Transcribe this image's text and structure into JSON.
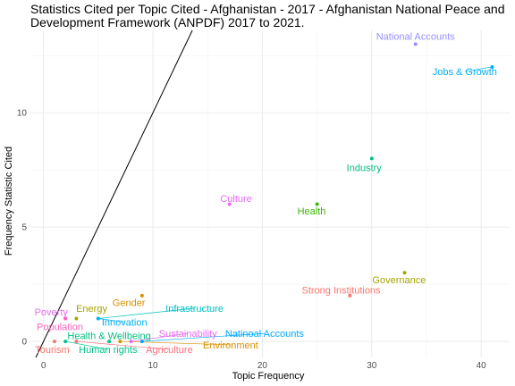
{
  "chart_data": {
    "type": "scatter",
    "title": "Statistics Cited per Topic Cited - Afghanistan - 2017 - Afghanistan National Peace and Development Framework (ANPDF) 2017 to 2021.",
    "title_lines": [
      "Statistics Cited per Topic Cited - Afghanistan - 2017 - Afghanistan National Peace and",
      "Development Framework (ANPDF) 2017 to 2021."
    ],
    "xlabel": "Topic Frequency",
    "ylabel": "Frequency Statistic Cited",
    "xlim": [
      -1.2,
      42.6
    ],
    "ylim": [
      -0.7,
      13.6
    ],
    "x_ticks": [
      0,
      10,
      20,
      30,
      40
    ],
    "y_ticks": [
      0,
      5,
      10
    ],
    "grid": true,
    "reference_line": {
      "type": "y = x",
      "color": "#000000"
    },
    "points": [
      {
        "label": "National Accounts",
        "x": 34,
        "y": 13,
        "color": "#9590ff",
        "lx": 34,
        "ly": 13.35
      },
      {
        "label": "Jobs & Growth",
        "x": 41,
        "y": 12,
        "color": "#00b0f6",
        "lx": 38.5,
        "ly": 11.8
      },
      {
        "label": "Industry",
        "x": 30,
        "y": 8,
        "color": "#00bf7d",
        "lx": 29.3,
        "ly": 7.6
      },
      {
        "label": "Culture",
        "x": 17,
        "y": 6,
        "color": "#e76bf3",
        "lx": 17.6,
        "ly": 6.25
      },
      {
        "label": "Health",
        "x": 25,
        "y": 6,
        "color": "#39b600",
        "lx": 24.5,
        "ly": 5.7
      },
      {
        "label": "Governance",
        "x": 33,
        "y": 3,
        "color": "#a3a500",
        "lx": 32.5,
        "ly": 2.7
      },
      {
        "label": "Strong Institutions",
        "x": 28,
        "y": 2,
        "color": "#f8766d",
        "lx": 27.2,
        "ly": 2.25
      },
      {
        "label": "Gender",
        "x": 9,
        "y": 2,
        "color": "#d89000",
        "lx": 7.8,
        "ly": 1.7
      },
      {
        "label": "Infrastructure",
        "x": 5,
        "y": 1,
        "color": "#00bfc4",
        "lx": 13.8,
        "ly": 1.45
      },
      {
        "label": "Energy",
        "x": 3,
        "y": 1,
        "color": "#a3a500",
        "lx": 4.4,
        "ly": 1.45
      },
      {
        "label": "Poverty",
        "x": 2,
        "y": 1,
        "color": "#e76bf3",
        "lx": 0.7,
        "ly": 1.3
      },
      {
        "label": "Innovation",
        "x": 5,
        "y": 1,
        "color": "#00b0f6",
        "lx": 7.4,
        "ly": 0.85
      },
      {
        "label": "Population",
        "x": 2,
        "y": 1,
        "color": "#ff62bc",
        "lx": 1.5,
        "ly": 0.65
      },
      {
        "label": "Health & Wellbeing",
        "x": 6,
        "y": 0,
        "color": "#00bf7d",
        "lx": 6,
        "ly": 0.25
      },
      {
        "label": "Sustainability",
        "x": 8,
        "y": 0,
        "color": "#e76bf3",
        "lx": 13.2,
        "ly": 0.35
      },
      {
        "label": "Natinoal Accounts",
        "x": 9,
        "y": 0,
        "color": "#00a9ff",
        "lx": 20.2,
        "ly": 0.35
      },
      {
        "label": "Environment",
        "x": 7,
        "y": 0,
        "color": "#d89000",
        "lx": 17.1,
        "ly": -0.15
      },
      {
        "label": "Tourism",
        "x": 1,
        "y": 0,
        "color": "#f8766d",
        "lx": 0.8,
        "ly": -0.35
      },
      {
        "label": "Human rights",
        "x": 2,
        "y": 0,
        "color": "#00c08b",
        "lx": 5.9,
        "ly": -0.35
      },
      {
        "label": "Agriculture",
        "x": 3,
        "y": 0,
        "color": "#fc717f",
        "lx": 11.5,
        "ly": -0.35
      }
    ]
  }
}
